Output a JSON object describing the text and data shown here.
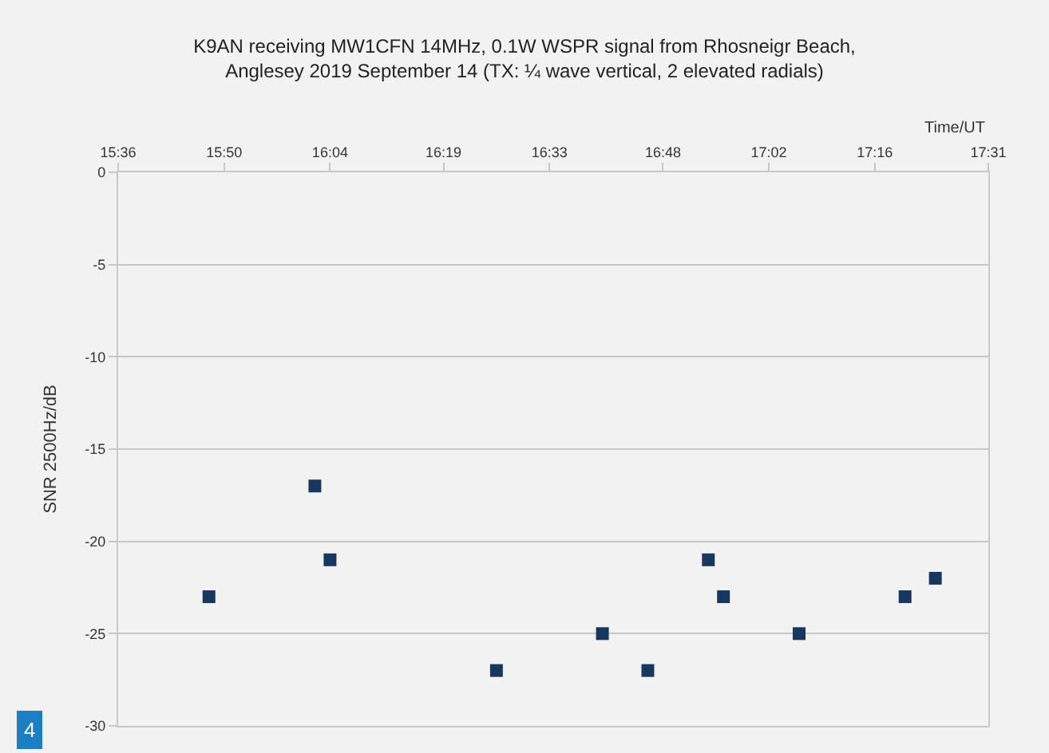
{
  "chart_data": {
    "type": "scatter",
    "title": "K9AN receiving MW1CFN 14MHz, 0.1W WSPR signal from Rhosneigr Beach,\nAnglesey 2019 September 14 (TX: ¼ wave vertical, 2 elevated radials)",
    "xlabel": "Time/UT",
    "ylabel": "SNR 2500Hz/dB",
    "x": [
      15.8,
      16.0333,
      16.0667,
      16.4333,
      16.6667,
      16.7667,
      16.9,
      16.9333,
      17.1,
      17.3333,
      17.4
    ],
    "series": [
      {
        "color": "#17375e",
        "values": [
          -23,
          -17,
          -21,
          -27,
          -25,
          -27,
          -21,
          -23,
          -25,
          -23,
          -22
        ]
      }
    ],
    "xlim": [
      15.6,
      17.5167
    ],
    "xticks": [
      {
        "value": 15.6,
        "label": "15:36"
      },
      {
        "value": 15.8333,
        "label": "15:50"
      },
      {
        "value": 16.0667,
        "label": "16:04"
      },
      {
        "value": 16.3167,
        "label": "16:19"
      },
      {
        "value": 16.55,
        "label": "16:33"
      },
      {
        "value": 16.8,
        "label": "16:48"
      },
      {
        "value": 17.0333,
        "label": "17:02"
      },
      {
        "value": 17.2667,
        "label": "17:16"
      },
      {
        "value": 17.5167,
        "label": "17:31"
      }
    ],
    "ylim": [
      -30,
      0
    ],
    "yticks": [
      0,
      -5,
      -10,
      -15,
      -20,
      -25,
      -30
    ],
    "grid": "y",
    "marker": "square",
    "annotations": [
      "4"
    ]
  }
}
